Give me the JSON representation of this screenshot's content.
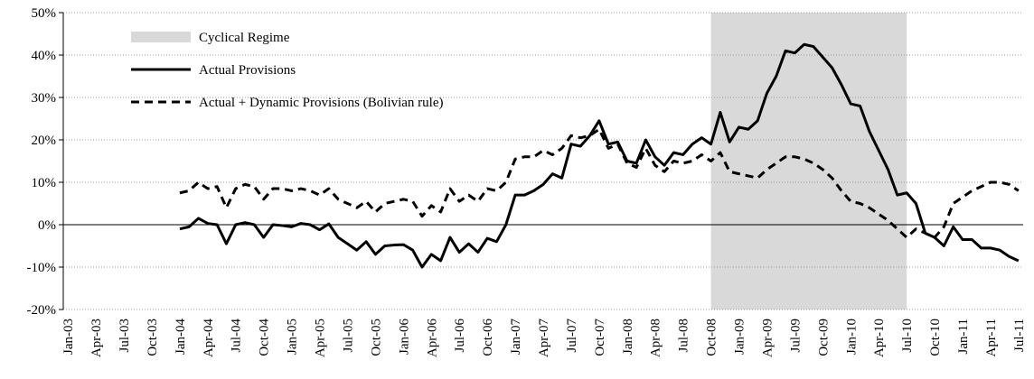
{
  "chart_data": {
    "type": "line",
    "categories": [
      "Jan-03",
      null,
      null,
      "Apr-03",
      null,
      null,
      "Jul-03",
      null,
      null,
      "Oct-03",
      null,
      null,
      "Jan-04",
      null,
      null,
      "Apr-04",
      null,
      null,
      "Jul-04",
      null,
      null,
      "Oct-04",
      null,
      null,
      "Jan-05",
      null,
      null,
      "Apr-05",
      null,
      null,
      "Jul-05",
      null,
      null,
      "Oct-05",
      null,
      null,
      "Jan-06",
      null,
      null,
      "Apr-06",
      null,
      null,
      "Jul-06",
      null,
      null,
      "Oct-06",
      null,
      null,
      "Jan-07",
      null,
      null,
      "Apr-07",
      null,
      null,
      "Jul-07",
      null,
      null,
      "Oct-07",
      null,
      null,
      "Jan-08",
      null,
      null,
      "Apr-08",
      null,
      null,
      "Jul-08",
      null,
      null,
      "Oct-08",
      null,
      null,
      "Jan-09",
      null,
      null,
      "Apr-09",
      null,
      null,
      "Jul-09",
      null,
      null,
      "Oct-09",
      null,
      null,
      "Jan-10",
      null,
      null,
      "Apr-10",
      null,
      null,
      "Jul-10",
      null,
      null,
      "Oct-10",
      null,
      null,
      "Jan-11",
      null,
      null,
      "Apr-11",
      null,
      null,
      "Jul-11"
    ],
    "series": [
      {
        "name": "Actual Provisions",
        "color": "#000000",
        "line_style": "solid",
        "values": [
          null,
          null,
          null,
          null,
          null,
          null,
          null,
          null,
          null,
          null,
          null,
          null,
          -1,
          -0.5,
          1.5,
          0.3,
          0,
          -4.5,
          0,
          0.5,
          0,
          -3,
          0,
          -0.2,
          -0.5,
          0.3,
          0,
          -1.2,
          0.2,
          -3,
          -4.5,
          -6,
          -4,
          -7,
          -5,
          -4.8,
          -4.7,
          -6,
          -10,
          -7,
          -8.5,
          -3,
          -6.5,
          -4.5,
          -6.5,
          -3.2,
          -4,
          0,
          7,
          7,
          8,
          9.5,
          12,
          11,
          19,
          18.5,
          21,
          24.5,
          19,
          19.5,
          15,
          14.5,
          20,
          16,
          14,
          17,
          16.5,
          19,
          20.5,
          19,
          26.5,
          19.5,
          23,
          22.5,
          24.5,
          31,
          35,
          41,
          40.5,
          42.5,
          42,
          39.5,
          37,
          33,
          28.5,
          28,
          22,
          17.5,
          13,
          7,
          7.5,
          5,
          -2,
          -3,
          -5,
          -0.5,
          -3.5,
          -3.5,
          -5.5,
          -5.5,
          -6,
          -7.5,
          -8.5
        ]
      },
      {
        "name": "Actual + Dynamic Provisions (Bolivian rule)",
        "color": "#000000",
        "line_style": "dashed",
        "values": [
          null,
          null,
          null,
          null,
          null,
          null,
          null,
          null,
          null,
          null,
          null,
          null,
          7.5,
          8,
          10,
          8.5,
          9,
          4,
          8.5,
          9.5,
          9,
          6,
          8.5,
          8.5,
          8,
          8.5,
          8,
          7,
          8.5,
          6,
          5,
          4,
          5.5,
          3,
          5,
          5.5,
          6,
          5.5,
          2,
          4.5,
          3,
          8.5,
          5.5,
          7,
          5.5,
          8.5,
          8,
          10,
          15.5,
          16,
          16,
          17.5,
          16.5,
          18,
          21,
          20.5,
          21,
          22.5,
          18,
          19,
          14.5,
          13.5,
          18,
          14,
          12.5,
          15,
          14.5,
          15,
          16.5,
          15,
          17,
          12.5,
          12,
          11.5,
          11,
          13,
          14.5,
          16,
          16,
          15.5,
          14.5,
          13,
          11,
          8,
          5.5,
          5,
          4,
          2.5,
          1,
          -1,
          -3,
          -1,
          -2,
          -3,
          -0.5,
          5,
          6.5,
          8,
          9,
          10,
          10,
          9.5,
          8
        ]
      }
    ],
    "shaded_regions": [
      {
        "name": "Cyclical Regime",
        "color": "#d9d9d9",
        "start": "Oct-08",
        "end": "Jul-10"
      }
    ],
    "ylim": [
      -20,
      50
    ],
    "yticks": [
      {
        "value": -20,
        "label": "-20%"
      },
      {
        "value": -10,
        "label": "-10%"
      },
      {
        "value": 0,
        "label": "0%"
      },
      {
        "value": 10,
        "label": "10%"
      },
      {
        "value": 20,
        "label": "20%"
      },
      {
        "value": 30,
        "label": "30%"
      },
      {
        "value": 40,
        "label": "40%"
      },
      {
        "value": 50,
        "label": "50%"
      }
    ],
    "grid": true
  }
}
